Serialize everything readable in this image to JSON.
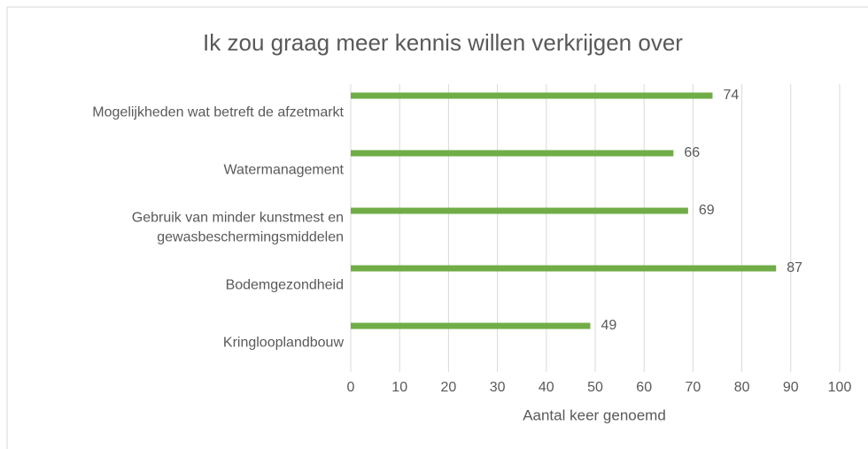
{
  "chart_data": {
    "type": "bar",
    "orientation": "horizontal",
    "title": "Ik zou graag meer kennis willen verkrijgen over",
    "x_label": "Aantal keer genoemd",
    "categories": [
      "Mogelijkheden wat betreft de afzetmarkt",
      "Watermanagement",
      "Gebruik van minder kunstmest en gewasbeschermingsmiddelen",
      "Bodemgezondheid",
      "Kringlooplandbouw"
    ],
    "values": [
      74,
      66,
      69,
      87,
      49
    ],
    "color": "#70ad47",
    "xlim": [
      0,
      100
    ],
    "xticks": [
      0,
      10,
      20,
      30,
      40,
      50,
      60,
      70,
      80,
      90,
      100
    ],
    "grid": true
  }
}
